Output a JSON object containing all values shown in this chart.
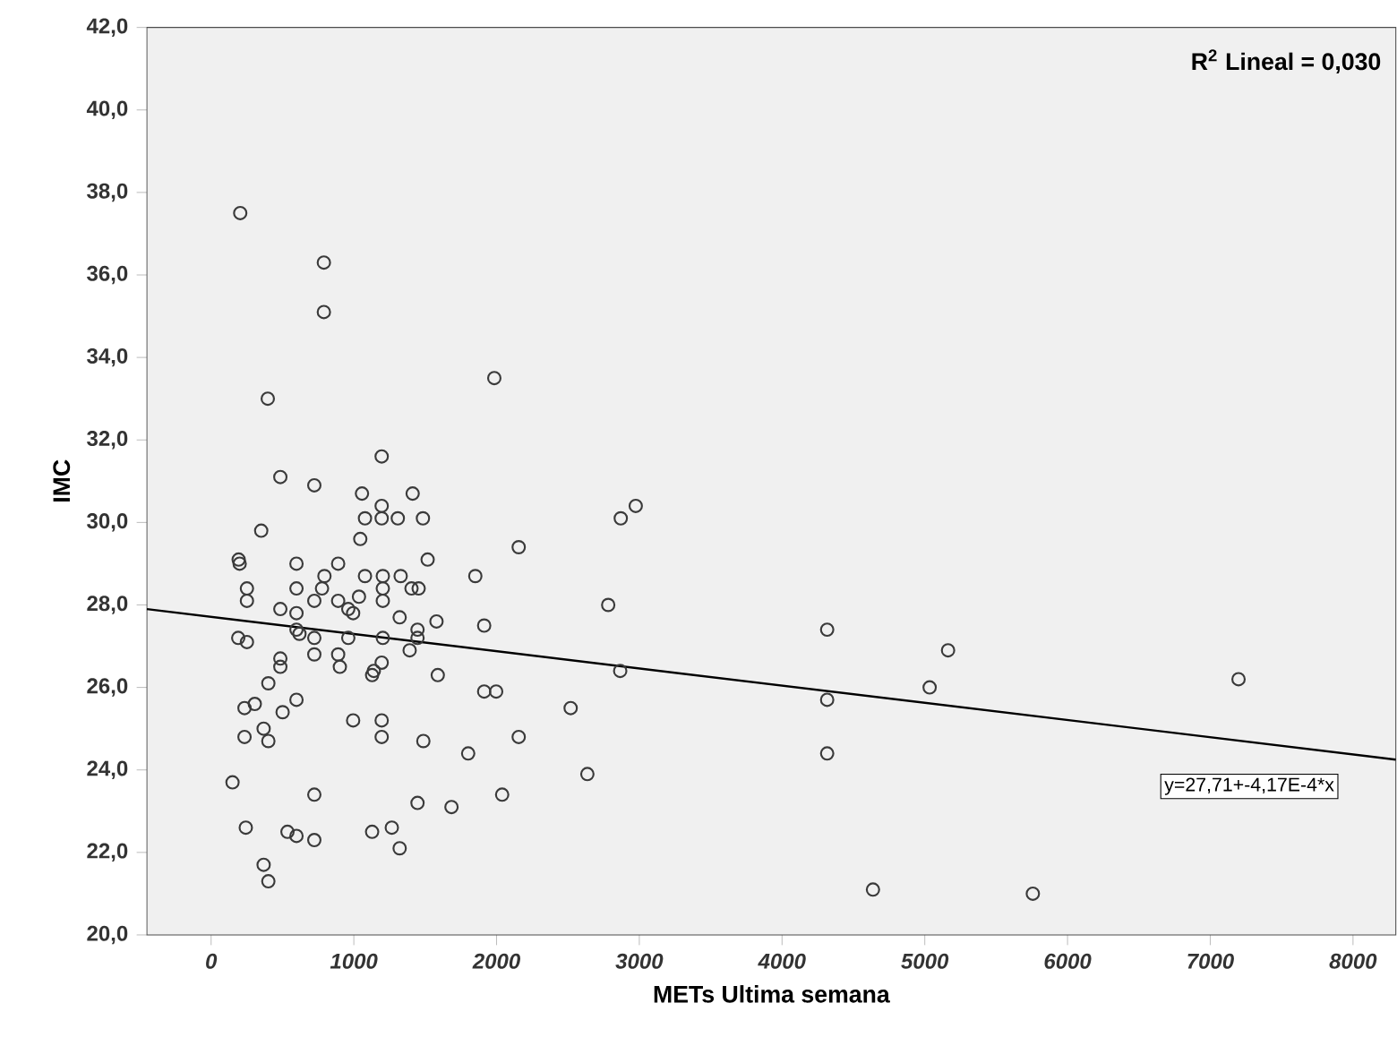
{
  "chart_data": {
    "type": "scatter",
    "xlabel": "METs Ultima semana",
    "ylabel": "IMC",
    "xlim": [
      -450,
      8300
    ],
    "ylim": [
      20,
      42
    ],
    "xticks": [
      0,
      1000,
      2000,
      3000,
      4000,
      5000,
      6000,
      7000,
      8000
    ],
    "yticks": [
      {
        "value": 20,
        "label": "20,0"
      },
      {
        "value": 22,
        "label": "22,0"
      },
      {
        "value": 24,
        "label": "24,0"
      },
      {
        "value": 26,
        "label": "26,0"
      },
      {
        "value": 28,
        "label": "28,0"
      },
      {
        "value": 30,
        "label": "30,0"
      },
      {
        "value": 32,
        "label": "32,0"
      },
      {
        "value": 34,
        "label": "34,0"
      },
      {
        "value": 36,
        "label": "36,0"
      },
      {
        "value": 38,
        "label": "38,0"
      },
      {
        "value": 40,
        "label": "40,0"
      },
      {
        "value": 42,
        "label": "42,0"
      }
    ],
    "marker": "circle",
    "grid": false,
    "annotations": [
      "R$^{2}$ Lineal = 0,030",
      "y=27,71+-4,17E-4*x"
    ],
    "series": [
      {
        "color": "#3a3a3a",
        "x": [
          204,
          790,
          790,
          397,
          1984,
          1195,
          485,
          723,
          1057,
          1412,
          1195,
          1078,
          1195,
          1308,
          1484,
          2870,
          2975,
          351,
          1045,
          2155,
          1517,
          193,
          200,
          598,
          890,
          1851,
          2782,
          251,
          251,
          598,
          794,
          1078,
          1203,
          1328,
          777,
          723,
          890,
          1036,
          1203,
          1203,
          1404,
          1454,
          485,
          598,
          961,
          995,
          1321,
          1579,
          1913,
          190,
          251,
          598,
          619,
          723,
          961,
          1203,
          1446,
          1446,
          1391,
          723,
          890,
          485,
          485,
          1588,
          902,
          1195,
          1140,
          1128,
          401,
          1913,
          1997,
          2866,
          234,
          306,
          598,
          501,
          2519,
          995,
          1195,
          1195,
          234,
          368,
          401,
          1487,
          2155,
          1801,
          2636,
          150,
          723,
          1446,
          1684,
          2039,
          243,
          535,
          598,
          723,
          1128,
          1266,
          1321,
          368,
          401,
          4316,
          4316,
          4316,
          5163,
          5034,
          7198,
          4637,
          5757
        ],
        "values": [
          37.5,
          36.3,
          35.1,
          33.0,
          33.5,
          31.6,
          31.1,
          30.9,
          30.7,
          30.7,
          30.4,
          30.1,
          30.1,
          30.1,
          30.1,
          30.1,
          30.4,
          29.8,
          29.6,
          29.4,
          29.1,
          29.1,
          29.0,
          29.0,
          29.0,
          28.7,
          28.0,
          28.4,
          28.1,
          28.4,
          28.7,
          28.7,
          28.7,
          28.7,
          28.4,
          28.1,
          28.1,
          28.2,
          28.4,
          28.1,
          28.4,
          28.4,
          27.9,
          27.8,
          27.9,
          27.8,
          27.7,
          27.6,
          27.5,
          27.2,
          27.1,
          27.4,
          27.3,
          27.2,
          27.2,
          27.2,
          27.4,
          27.2,
          26.9,
          26.8,
          26.8,
          26.7,
          26.5,
          26.3,
          26.5,
          26.6,
          26.4,
          26.3,
          26.1,
          25.9,
          25.9,
          26.4,
          25.5,
          25.6,
          25.7,
          25.4,
          25.5,
          25.2,
          25.2,
          24.8,
          24.8,
          25.0,
          24.7,
          24.7,
          24.8,
          24.4,
          23.9,
          23.7,
          23.4,
          23.2,
          23.1,
          23.4,
          22.6,
          22.5,
          22.4,
          22.3,
          22.5,
          22.6,
          22.1,
          21.7,
          21.3,
          27.4,
          25.7,
          24.4,
          26.9,
          26.0,
          26.2,
          21.1,
          21.0
        ]
      },
      {
        "type": "line",
        "color": "#000000",
        "marker": "none",
        "x": [
          -450,
          8300
        ],
        "values": [
          27.9,
          24.25
        ]
      }
    ]
  }
}
